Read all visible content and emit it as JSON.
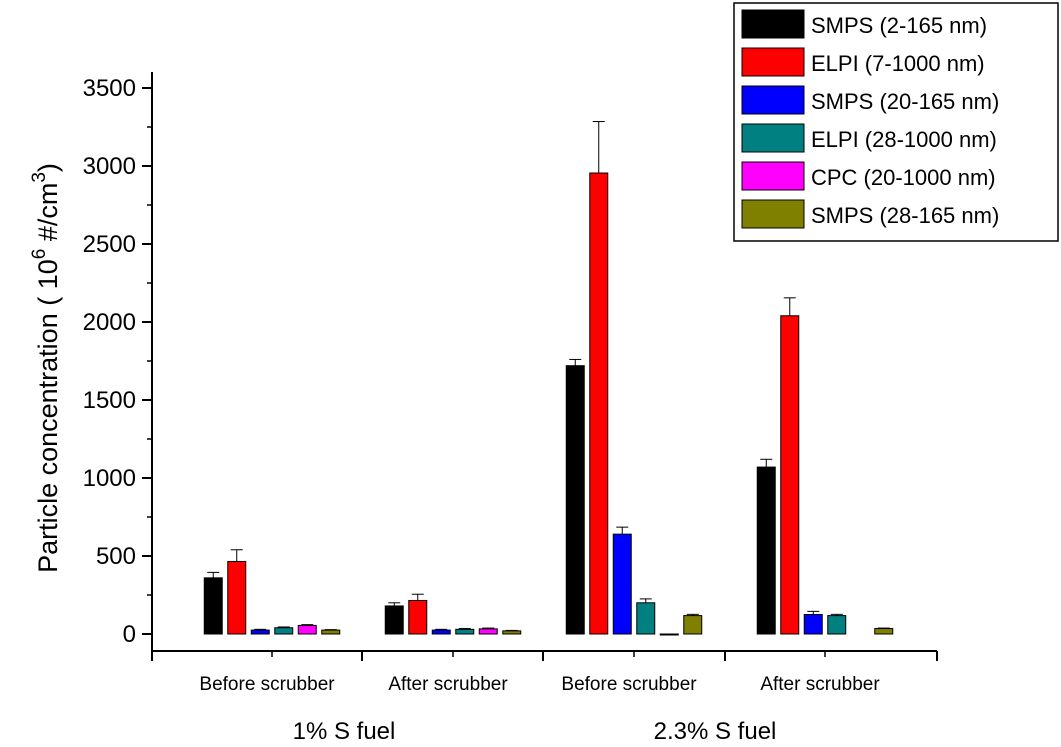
{
  "chart_data": {
    "type": "bar",
    "ylabel_main": "Particle concentration ( 10",
    "ylabel_sup1": "6",
    "ylabel_mid": " #/cm",
    "ylabel_sup2": "3",
    "ylabel_end": ")",
    "ylim": [
      -100,
      3650
    ],
    "yticks": [
      0,
      500,
      1000,
      1500,
      2000,
      2500,
      3000,
      3500
    ],
    "categories": [
      "Before scrubber",
      "After scrubber",
      "Before scrubber",
      "After scrubber"
    ],
    "groups": [
      {
        "label": "1% S fuel",
        "categories": [
          0,
          1
        ]
      },
      {
        "label": "2.3% S fuel",
        "categories": [
          2,
          3
        ]
      }
    ],
    "series": [
      {
        "name": "SMPS (2-165 nm)",
        "color": "#000000",
        "values": [
          360,
          180,
          1720,
          1070
        ],
        "errors": [
          35,
          20,
          40,
          50
        ]
      },
      {
        "name": "ELPI (7-1000 nm)",
        "color": "#ff0000",
        "values": [
          465,
          215,
          2955,
          2040
        ],
        "errors": [
          75,
          40,
          330,
          115
        ]
      },
      {
        "name": "SMPS (20-165 nm)",
        "color": "#0000ff",
        "values": [
          25,
          25,
          640,
          125
        ],
        "errors": [
          5,
          5,
          45,
          20
        ]
      },
      {
        "name": "ELPI (28-1000 nm)",
        "color": "#008080",
        "values": [
          40,
          30,
          200,
          118
        ],
        "errors": [
          5,
          5,
          25,
          8
        ]
      },
      {
        "name": "CPC (20-1000 nm)",
        "color": "#ff00ff",
        "values": [
          55,
          33,
          -5,
          null
        ],
        "errors": [
          5,
          5,
          0,
          0
        ]
      },
      {
        "name": "SMPS (28-165 nm)",
        "color": "#808000",
        "values": [
          25,
          20,
          118,
          35
        ],
        "errors": [
          3,
          3,
          8,
          3
        ]
      }
    ],
    "legend_position": "top-right",
    "grid": false
  }
}
